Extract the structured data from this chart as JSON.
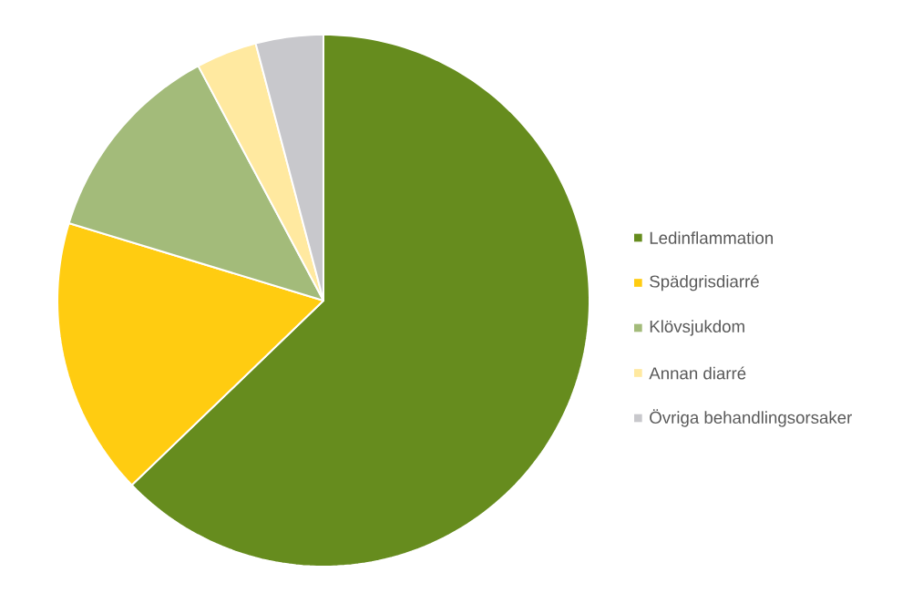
{
  "chart_data": {
    "type": "pie",
    "categories": [
      "Ledinflammation",
      "Spädgrisdiarré",
      "Klövsjukdom",
      "Annan diarré",
      "Övriga behandlingsorsaker"
    ],
    "values": [
      62.8,
      16.9,
      12.5,
      3.7,
      4.1
    ],
    "colors": [
      "#668c1e",
      "#ffcc11",
      "#a3bb7a",
      "#ffe9a0",
      "#c8c8cc"
    ],
    "legend": "right"
  }
}
